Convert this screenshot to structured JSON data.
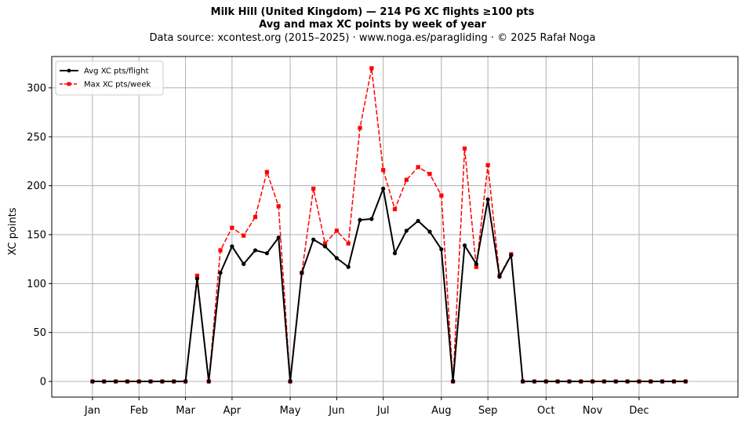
{
  "chart_data": {
    "type": "line",
    "title": "Milk Hill (United Kingdom)  —  214 PG XC flights ≥100 pts",
    "subtitle": "Avg and max XC points by week of year",
    "caption": "Data source: xcontest.org (2015–2025)  ·  www.noga.es/paragliding  ·  © 2025 Rafał Noga",
    "xlabel": "",
    "ylabel": "XC points",
    "ylim": [
      -16,
      332
    ],
    "xlim": [
      -3.5,
      55.5
    ],
    "y_ticks": [
      0,
      50,
      100,
      150,
      200,
      250,
      300
    ],
    "x_ticks": [
      {
        "label": "Jan",
        "x": 0
      },
      {
        "label": "Feb",
        "x": 4
      },
      {
        "label": "Mar",
        "x": 8
      },
      {
        "label": "Apr",
        "x": 12
      },
      {
        "label": "May",
        "x": 17
      },
      {
        "label": "Jun",
        "x": 21
      },
      {
        "label": "Jul",
        "x": 25
      },
      {
        "label": "Aug",
        "x": 30
      },
      {
        "label": "Sep",
        "x": 34
      },
      {
        "label": "Oct",
        "x": 39
      },
      {
        "label": "Nov",
        "x": 43
      },
      {
        "label": "Dec",
        "x": 47
      }
    ],
    "grid": true,
    "legend_position": "top-left",
    "x": [
      0,
      1,
      2,
      3,
      4,
      5,
      6,
      7,
      8,
      9,
      10,
      11,
      12,
      13,
      14,
      15,
      16,
      17,
      18,
      19,
      20,
      21,
      22,
      23,
      24,
      25,
      26,
      27,
      28,
      29,
      30,
      31,
      32,
      33,
      34,
      35,
      36,
      37,
      38,
      39,
      40,
      41,
      42,
      43,
      44,
      45,
      46,
      47,
      48,
      49,
      50,
      51
    ],
    "series": [
      {
        "name": "Avg XC pts/flight",
        "color": "#000000",
        "style": "solid-circle",
        "values": [
          0,
          0,
          0,
          0,
          0,
          0,
          0,
          0,
          0,
          105,
          0,
          111,
          138,
          120,
          134,
          131,
          147,
          0,
          111,
          145,
          138,
          126,
          117,
          165,
          166,
          197,
          131,
          154,
          164,
          153,
          135,
          0,
          139,
          120,
          186,
          107,
          129,
          0,
          0,
          0,
          0,
          0,
          0,
          0,
          0,
          0,
          0,
          0,
          0,
          0,
          0,
          0
        ]
      },
      {
        "name": "Max XC pts/week",
        "color": "#ff0000",
        "style": "dashed-square",
        "values": [
          0,
          0,
          0,
          0,
          0,
          0,
          0,
          0,
          0,
          108,
          0,
          134,
          157,
          149,
          168,
          214,
          179,
          0,
          111,
          197,
          141,
          154,
          141,
          259,
          320,
          216,
          176,
          206,
          219,
          212,
          190,
          0,
          238,
          117,
          221,
          108,
          130,
          0,
          0,
          0,
          0,
          0,
          0,
          0,
          0,
          0,
          0,
          0,
          0,
          0,
          0,
          0
        ]
      }
    ]
  }
}
